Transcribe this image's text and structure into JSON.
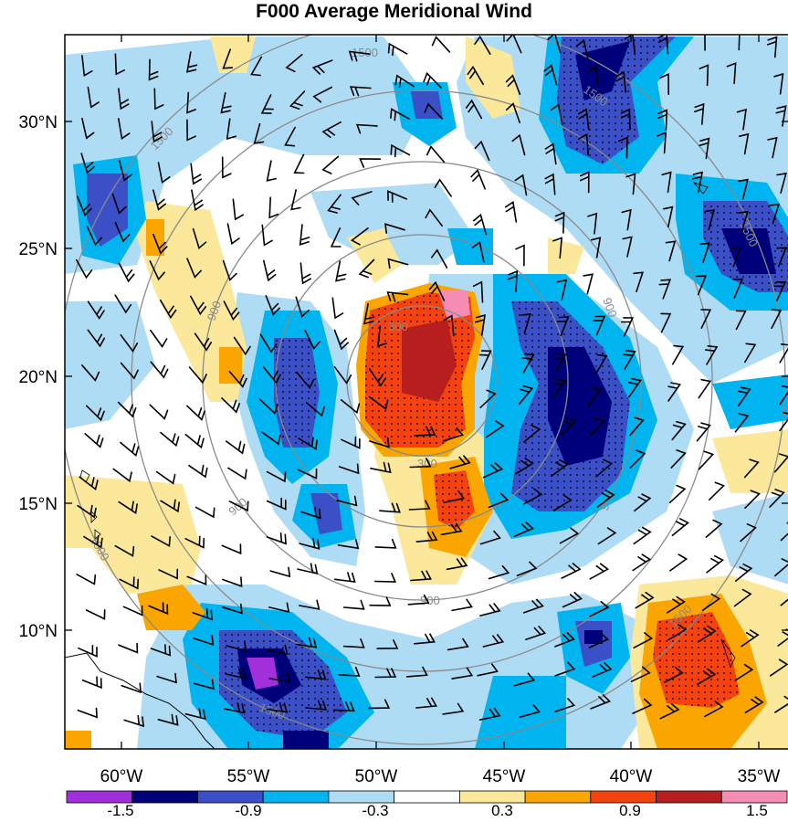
{
  "title": "F000 Average Meridional Wind",
  "map": {
    "lat_ticks": [
      "30°N",
      "25°N",
      "20°N",
      "15°N",
      "10°N"
    ],
    "lon_ticks": [
      "60°W",
      "55°W",
      "50°W",
      "45°W",
      "40°W",
      "35°W"
    ],
    "range_ring_labels": {
      "r300": "300",
      "r900": "900",
      "r1500": "1500"
    }
  },
  "colorbar": {
    "labels": [
      "-1.5",
      "-0.9",
      "-0.3",
      "0.3",
      "0.9",
      "1.5"
    ],
    "colors": [
      "#a12fdc",
      "#00007a",
      "#3b4fc6",
      "#00b5ef",
      "#aedcf4",
      "#ffffff",
      "#fbe89a",
      "#fba600",
      "#f5420f",
      "#b71e1e",
      "#f58cb4"
    ]
  }
}
